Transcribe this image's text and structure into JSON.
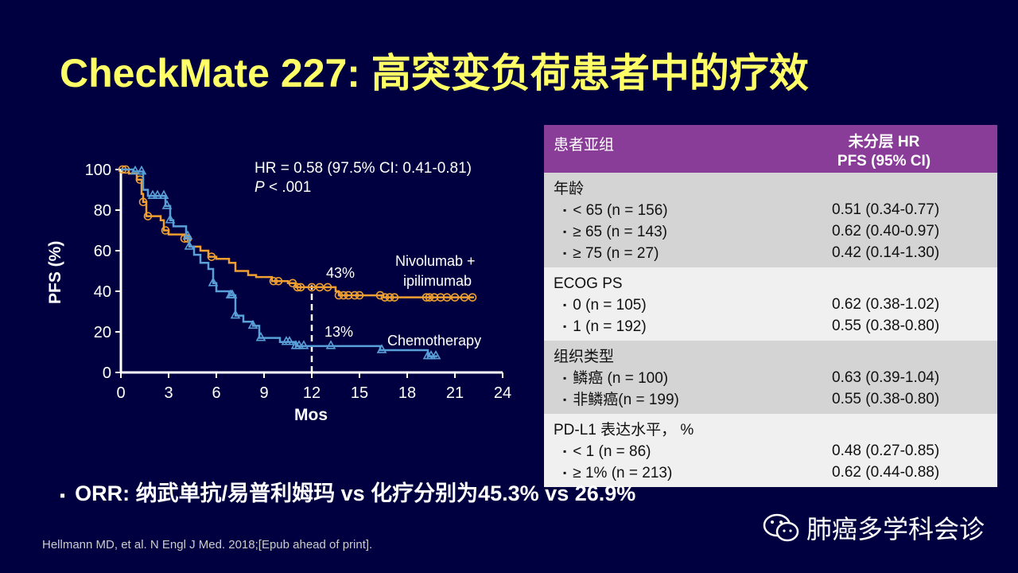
{
  "title": "CheckMate 227: 高突变负荷患者中的疗效",
  "chart_data": {
    "type": "line",
    "title": "",
    "xlabel": "Mos",
    "ylabel": "PFS (%)",
    "xlim": [
      0,
      24
    ],
    "ylim": [
      0,
      100
    ],
    "xticks": [
      0,
      3,
      6,
      9,
      12,
      15,
      18,
      21,
      24
    ],
    "yticks": [
      0,
      20,
      40,
      60,
      80,
      100
    ],
    "annotations": {
      "hr": "HR = 0.58 (97.5% CI: 0.41-0.81)",
      "p_italic": "P",
      "p_rest": " < .001",
      "nivo_12mo": "43%",
      "chemo_12mo": "13%",
      "ref_line_x": 12
    },
    "series": [
      {
        "name": "Nivolumab + ipilimumab",
        "name_line1": "Nivolumab  +",
        "name_line2": "ipilimumab",
        "color": "#f0a030",
        "x": [
          0,
          0.5,
          1,
          1.3,
          1.4,
          1.6,
          2.5,
          2.7,
          3,
          4,
          4.3,
          5,
          5.5,
          6,
          6.8,
          7.2,
          8,
          8.5,
          9.5,
          10.5,
          11,
          12,
          13.5,
          13.7,
          16,
          16.5,
          22.2
        ],
        "y": [
          100,
          98,
          95,
          88,
          84,
          77,
          75,
          70,
          68,
          66,
          62,
          60,
          57,
          56,
          54,
          50,
          48,
          47,
          45,
          44,
          42,
          42,
          40,
          38,
          38,
          37,
          37
        ],
        "censored_x": [
          0.1,
          0.3,
          1.2,
          1.4,
          1.7,
          2.8,
          4,
          4.2,
          5.7,
          9.6,
          9.9,
          10.8,
          11.1,
          11.3,
          12,
          12.5,
          13,
          13.7,
          14,
          14.3,
          14.7,
          15,
          16.3,
          16.6,
          16.9,
          17.2,
          19.2,
          19.4,
          19.7,
          20.1,
          20.5,
          21,
          21.6,
          22.1
        ]
      },
      {
        "name": "Chemotherapy",
        "color": "#5aa0d8",
        "x": [
          0,
          0.8,
          1.4,
          1.7,
          2.8,
          3.1,
          3.3,
          4.1,
          4.3,
          4.6,
          5,
          5.5,
          5.8,
          6,
          6.8,
          7.2,
          7.7,
          8.3,
          8.7,
          10,
          11,
          16,
          16.3,
          19.3,
          19.9
        ],
        "y": [
          100,
          99,
          90,
          87,
          82,
          75,
          72,
          67,
          62,
          58,
          54,
          51,
          44,
          40,
          38,
          28,
          25,
          23,
          17,
          15,
          13,
          13,
          11,
          8,
          8
        ],
        "censored_x": [
          0.9,
          1.3,
          2,
          2.3,
          2.7,
          2.9,
          3.1,
          4.2,
          4.3,
          5.8,
          6.9,
          7,
          7.2,
          8.3,
          8.8,
          10.4,
          10.6,
          11,
          11.2,
          11.5,
          13.2,
          16.4,
          19.3,
          19.5,
          19.8
        ]
      }
    ]
  },
  "table": {
    "header": {
      "col1": "患者亚组",
      "col2_line1": "未分层 HR",
      "col2_line2": "PFS (95% CI)"
    },
    "groups": [
      {
        "name": "年龄",
        "rows": [
          [
            "< 65 (n = 156)",
            "0.51 (0.34-0.77)"
          ],
          [
            "≥ 65 (n = 143)",
            "0.62 (0.40-0.97)"
          ],
          [
            "≥ 75 (n = 27)",
            "0.42 (0.14-1.30)"
          ]
        ]
      },
      {
        "name": "ECOG PS",
        "rows": [
          [
            "0 (n = 105)",
            "0.62 (0.38-1.02)"
          ],
          [
            "1 (n = 192)",
            "0.55 (0.38-0.80)"
          ]
        ]
      },
      {
        "name": "组织类型",
        "rows": [
          [
            "鳞癌 (n = 100)",
            "0.63 (0.39-1.04)"
          ],
          [
            "非鳞癌(n = 199)",
            "0.55 (0.38-0.80)"
          ]
        ]
      },
      {
        "name": "PD-L1 表达水平， %",
        "rows": [
          [
            "< 1 (n = 86)",
            "0.48 (0.27-0.85)"
          ],
          [
            "≥ 1% (n = 213)",
            "0.62 (0.44-0.88)"
          ]
        ]
      }
    ]
  },
  "orr": "ORR: 纳武单抗/易普利姆玛 vs 化疗分别为45.3% vs 26.9%",
  "bullet": "▪",
  "citation": "Hellmann MD, et al. N Engl J Med. 2018;[Epub ahead of print].",
  "watermark": "肺癌多学科会诊"
}
